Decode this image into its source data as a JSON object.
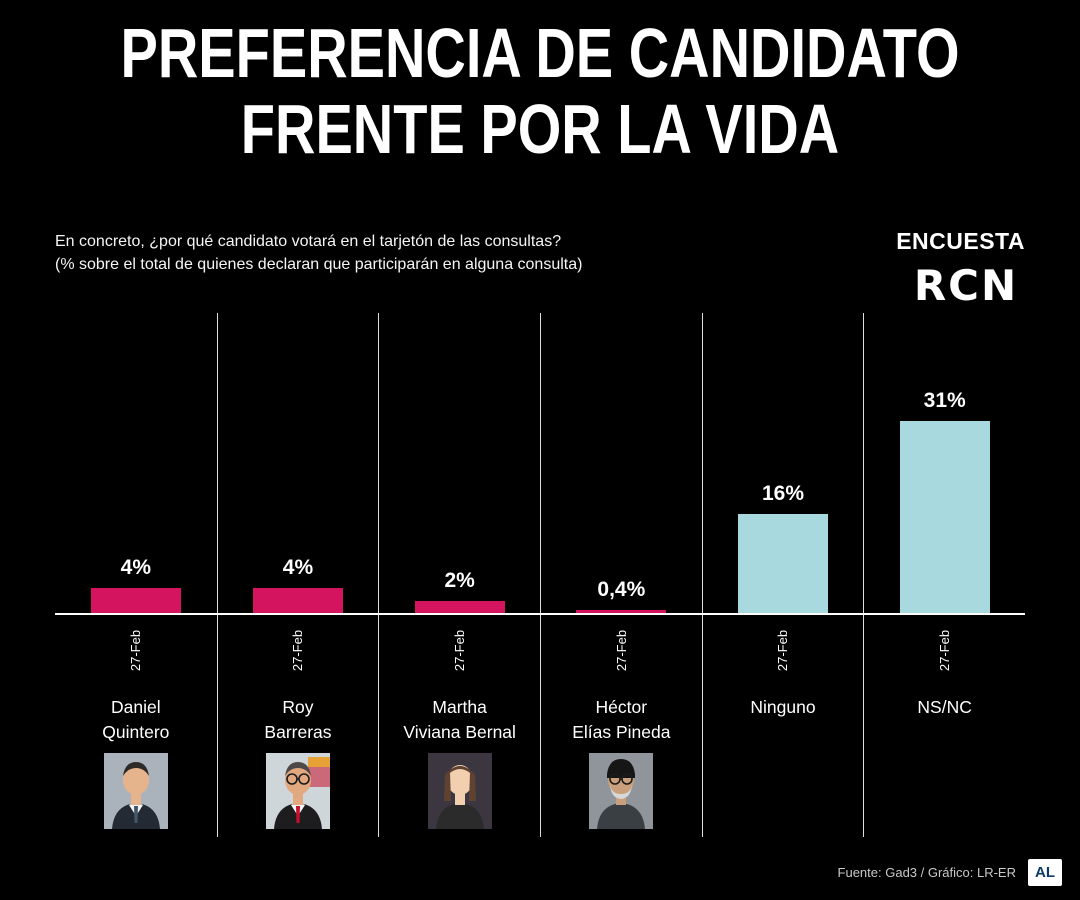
{
  "page": {
    "background": "#000000"
  },
  "title": {
    "line1": "PREFERENCIA DE CANDIDATO",
    "line2": "FRENTE POR LA VIDA"
  },
  "subtitle": {
    "line1": "En concreto, ¿por qué candidato votará en el tarjetón de las consultas?",
    "line2": "(% sobre el total de quienes declaran que participarán en alguna consulta)"
  },
  "branding": {
    "encuesta": "ENCUESTA",
    "logo_text": "RCN"
  },
  "footer": {
    "credit": "Fuente: Gad3 / Gráfico: LR-ER",
    "logo_text": "AL"
  },
  "chart_data": {
    "type": "bar",
    "title": "Preferencia de candidato Frente por la Vida",
    "unit": "%",
    "categories": [
      "Daniel Quintero",
      "Roy Barreras",
      "Martha Viviana Bernal",
      "Héctor Elías Pineda",
      "Ninguno",
      "NS/NC"
    ],
    "values": [
      4,
      4,
      2,
      0.4,
      16,
      31
    ],
    "value_labels": [
      "4%",
      "4%",
      "2%",
      "0,4%",
      "16%",
      "31%"
    ],
    "x_tick_label": "27-Feb",
    "xlabel": "",
    "ylabel": "",
    "ylim": [
      0,
      33
    ],
    "grid": false,
    "legend": false,
    "colors": {
      "candidate_bar": "#d4145f",
      "other_bar": "#a7d9de",
      "axis": "#ffffff",
      "divider": "#dedede"
    },
    "columns": [
      {
        "name_lines": [
          "Daniel",
          "Quintero"
        ],
        "value": 4,
        "label": "4%",
        "tick": "27-Feb",
        "color": "#d4145f",
        "avatar": "man-suit"
      },
      {
        "name_lines": [
          "Roy",
          "Barreras"
        ],
        "value": 4,
        "label": "4%",
        "tick": "27-Feb",
        "color": "#d4145f",
        "avatar": "man-glasses-flag"
      },
      {
        "name_lines": [
          "Martha",
          "Viviana Bernal"
        ],
        "value": 2,
        "label": "2%",
        "tick": "27-Feb",
        "color": "#d4145f",
        "avatar": "woman"
      },
      {
        "name_lines": [
          "Héctor",
          "Elías Pineda"
        ],
        "value": 0.4,
        "label": "0,4%",
        "tick": "27-Feb",
        "color": "#d4145f",
        "avatar": "man-cap"
      },
      {
        "name_lines": [
          "Ninguno"
        ],
        "value": 16,
        "label": "16%",
        "tick": "27-Feb",
        "color": "#a7d9de",
        "avatar": null
      },
      {
        "name_lines": [
          "NS/NC"
        ],
        "value": 31,
        "label": "31%",
        "tick": "27-Feb",
        "color": "#a7d9de",
        "avatar": null
      }
    ]
  }
}
